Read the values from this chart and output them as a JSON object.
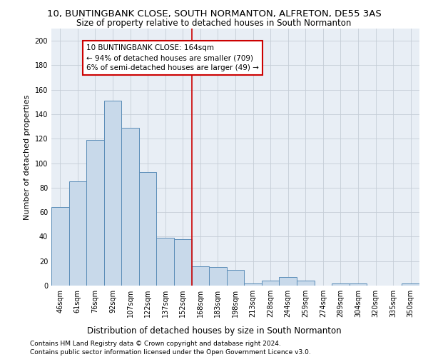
{
  "title1": "10, BUNTINGBANK CLOSE, SOUTH NORMANTON, ALFRETON, DE55 3AS",
  "title2": "Size of property relative to detached houses in South Normanton",
  "xlabel": "Distribution of detached houses by size in South Normanton",
  "ylabel": "Number of detached properties",
  "footer1": "Contains HM Land Registry data © Crown copyright and database right 2024.",
  "footer2": "Contains public sector information licensed under the Open Government Licence v3.0.",
  "annotation_title": "10 BUNTINGBANK CLOSE: 164sqm",
  "annotation_line1": "← 94% of detached houses are smaller (709)",
  "annotation_line2": "6% of semi-detached houses are larger (49) →",
  "bar_categories": [
    "46sqm",
    "61sqm",
    "76sqm",
    "92sqm",
    "107sqm",
    "122sqm",
    "137sqm",
    "152sqm",
    "168sqm",
    "183sqm",
    "198sqm",
    "213sqm",
    "228sqm",
    "244sqm",
    "259sqm",
    "274sqm",
    "289sqm",
    "304sqm",
    "320sqm",
    "335sqm",
    "350sqm"
  ],
  "bar_values": [
    64,
    85,
    119,
    151,
    129,
    93,
    39,
    38,
    16,
    15,
    13,
    2,
    4,
    7,
    4,
    0,
    2,
    2,
    0,
    0,
    2
  ],
  "bar_color": "#c8d9ea",
  "bar_edge_color": "#5b8db8",
  "vline_color": "#cc0000",
  "vline_x": 7.5,
  "annotation_box_color": "#cc0000",
  "bg_color": "#ffffff",
  "plot_bg_color": "#e8eef5",
  "grid_color": "#c5cdd6",
  "ylim": [
    0,
    210
  ],
  "yticks": [
    0,
    20,
    40,
    60,
    80,
    100,
    120,
    140,
    160,
    180,
    200
  ],
  "title1_fontsize": 9.5,
  "title2_fontsize": 8.5,
  "ylabel_fontsize": 8,
  "xlabel_fontsize": 8.5,
  "tick_fontsize": 7,
  "annotation_fontsize": 7.5,
  "footer_fontsize": 6.5
}
